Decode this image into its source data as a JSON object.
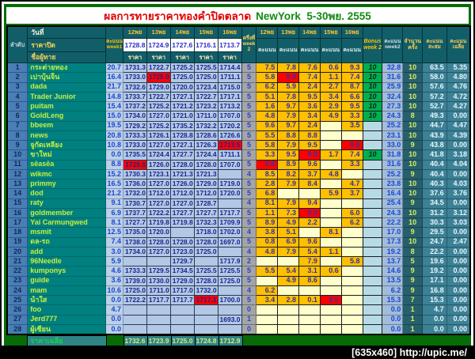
{
  "title": {
    "thai": "ผลการทายราคาทองคำปิดตลาด",
    "en": "NewYork  5-30พย. 2555"
  },
  "watermark": "[635x460] http://upic.me/",
  "colors": {
    "highlight_red": "#ff0000",
    "bonus_green": "#00b050",
    "score_orange": "#ffc000",
    "title_red": "#e00000",
    "title_green": "#128a12",
    "page_green": "#076b07"
  },
  "header": {
    "rank": "ลำดับ",
    "date": "วันที่",
    "close": "ราคาปิด",
    "name": "ชื่อผู้ทาย",
    "week1_score": "คะแนน week1",
    "dates": [
      "12พย",
      "13พย",
      "14พย",
      "15พย",
      "16พย"
    ],
    "close_prices": [
      "1728.8",
      "1724.9",
      "1727.6",
      "1716.1",
      "1713.7"
    ],
    "price_label": "ราคา",
    "half_week2": "ครึ่งที่ week 2",
    "score_label": "คะแนน",
    "bonus": "Bonus week 2",
    "week2_score": "คะแนน week2",
    "count": "จำนวน ครั้ง",
    "cumulative": "คะแนน สะสม",
    "average": "คะแนน เฉลี่ย"
  },
  "rows": [
    {
      "n": "1",
      "name": "กระต่ายทอง",
      "w1": "20.7",
      "p": [
        "1731.3",
        "1722.7",
        "1725.2",
        "1725.5",
        "1714.4"
      ],
      "pr": -1,
      "h": "5",
      "s": [
        "7.5",
        "7.8",
        "7.6",
        "0.6",
        "9.3"
      ],
      "sr": -1,
      "b": "10",
      "w2": "32.8",
      "c": "10",
      "cum": "63.5",
      "avg": "5.35"
    },
    {
      "n": "2",
      "name": "เปาบุ้นจิ้น",
      "w1": "16.4",
      "p": [
        "1733.0",
        "1725.0",
        "1725.0",
        "1725.0",
        "1711.1"
      ],
      "pr": 1,
      "h": "5",
      "s": [
        "5.8",
        "9.9",
        "7.4",
        "1.1",
        "7.4"
      ],
      "sr": 1,
      "b": "10",
      "w2": "31.6",
      "c": "10",
      "cum": "58.0",
      "avg": "4.80"
    },
    {
      "n": "3",
      "name": "dada",
      "w1": "21.7",
      "p": [
        "1732.6",
        "1729.0",
        "1720.0",
        "1723.4",
        "1715.0"
      ],
      "pr": -1,
      "h": "5",
      "s": [
        "6.2",
        "5.9",
        "2.4",
        "2.7",
        "8.7"
      ],
      "sr": -1,
      "b": "10",
      "w2": "25.9",
      "c": "10",
      "cum": "57.6",
      "avg": "4.76"
    },
    {
      "n": "4",
      "name": "Trader Junior",
      "w1": "14.8",
      "p": [
        "1733.7",
        "1722.7",
        "1727.1",
        "1722.7",
        "1717.1"
      ],
      "pr": -1,
      "h": "5",
      "s": [
        "5.1",
        "7.8",
        "9.5",
        "3.4",
        "6.6"
      ],
      "sr": -1,
      "b": "10",
      "w2": "32.4",
      "c": "10",
      "cum": "57.2",
      "avg": "4.72"
    },
    {
      "n": "5",
      "name": "puitam",
      "w1": "15.4",
      "p": [
        "1737.2",
        "1725.2",
        "1721.2",
        "1723.2",
        "1713.2"
      ],
      "pr": -1,
      "h": "5",
      "s": [
        "1.6",
        "9.7",
        "3.6",
        "2.9",
        "9.5"
      ],
      "sr": -1,
      "b": "10",
      "w2": "27.3",
      "c": "10",
      "cum": "52.7",
      "avg": "4.27"
    },
    {
      "n": "6",
      "name": "GoldLeng",
      "w1": "15.0",
      "p": [
        "1734.0",
        "1727.0",
        "1721.0",
        "1711.0",
        "1707.0"
      ],
      "pr": -1,
      "h": "5",
      "s": [
        "4.8",
        "7.9",
        "3.4",
        "4.9",
        "3.3"
      ],
      "sr": -1,
      "b": "10",
      "w2": "24.3",
      "c": "8",
      "cum": "49.3",
      "avg": "0.00"
    },
    {
      "n": "7",
      "name": "bbeem",
      "w1": "19.5",
      "p": [
        "1729.2",
        "1725.2",
        "1735.2",
        "1732.2",
        "1720.2"
      ],
      "pr": -1,
      "h": "5",
      "s": [
        "9.6",
        "9.7",
        "2.4",
        "",
        "3.5"
      ],
      "sr": -1,
      "b": "",
      "w2": "25.2",
      "c": "10",
      "cum": "44.7",
      "avg": "4.47"
    },
    {
      "n": "8",
      "name": "news",
      "w1": "20.8",
      "p": [
        "1733.3",
        "1726.1",
        "1728.8",
        "1728.6",
        "1726.6"
      ],
      "pr": -1,
      "h": "5",
      "s": [
        "5.5",
        "8.8",
        "8.8",
        "",
        ""
      ],
      "sr": -1,
      "b": "",
      "w2": "23.1",
      "c": "10",
      "cum": "43.9",
      "avg": "4.39"
    },
    {
      "n": "9",
      "name": "จูกัดเหลียง",
      "w1": "10.8",
      "p": [
        "1733.0",
        "1727.0",
        "1727.1",
        "1726.3",
        "1713.5"
      ],
      "pr": 4,
      "h": "5",
      "s": [
        "5.8",
        "7.9",
        "9.5",
        "",
        "9.8"
      ],
      "sr": 4,
      "b": "",
      "w2": "33.0",
      "c": "9",
      "cum": "43.8",
      "avg": "0.00"
    },
    {
      "n": "10",
      "name": "ขาใหม่",
      "w1": "0.0",
      "p": [
        "1735.5",
        "1724.4",
        "1727.7",
        "1724.4",
        "1711.1"
      ],
      "pr": -1,
      "h": "5",
      "s": [
        "3.3",
        "9.5",
        "9.9",
        "1.7",
        "7.4"
      ],
      "sr": 2,
      "b": "10",
      "w2": "31.8",
      "c": "10",
      "cum": "41.8",
      "avg": "3.18"
    },
    {
      "n": "11",
      "name": "sēasēa",
      "w1": "8.8",
      "p": [
        "1729.0",
        "1726.0",
        "1728.0",
        "1728.0",
        "1707.0"
      ],
      "pr": 0,
      "h": "5",
      "s": [
        "9.8",
        "8.9",
        "9.6",
        "",
        "3.3"
      ],
      "sr": 0,
      "b": "",
      "w2": "31.6",
      "c": "10",
      "cum": "40.4",
      "avg": "4.04"
    },
    {
      "n": "12",
      "name": "wikmc",
      "w1": "15.2",
      "p": [
        "1730.3",
        "1723.1",
        "1721.3",
        "1721.3",
        ""
      ],
      "pr": -1,
      "h": "4",
      "s": [
        "8.5",
        "8.2",
        "3.7",
        "4.8",
        ""
      ],
      "sr": -1,
      "b": "",
      "w2": "25.2",
      "c": "9",
      "cum": "40.4",
      "avg": "0.00"
    },
    {
      "n": "13",
      "name": "primmy",
      "w1": "16.5",
      "p": [
        "1736.0",
        "1727.0",
        "1726.0",
        "1729.0",
        "1719.0"
      ],
      "pr": -1,
      "h": "5",
      "s": [
        "2.8",
        "7.9",
        "8.4",
        "",
        "4.7"
      ],
      "sr": -1,
      "b": "",
      "w2": "23.8",
      "c": "10",
      "cum": "40.3",
      "avg": "4.03"
    },
    {
      "n": "14",
      "name": "dod",
      "w1": "21.2",
      "p": [
        "1732.0",
        "1712.0",
        "1712.0",
        "1712.0",
        "1720.0"
      ],
      "pr": -1,
      "h": "5",
      "s": [
        "6.8",
        "",
        "",
        "5.9",
        "3.7"
      ],
      "sr": -1,
      "b": "",
      "w2": "16.4",
      "c": "10",
      "cum": "37.6",
      "avg": "3.76"
    },
    {
      "n": "15",
      "name": "raty",
      "w1": "9.1",
      "p": [
        "1730.7",
        "1727.0",
        "1727.0",
        "1728.7",
        ""
      ],
      "pr": -1,
      "h": "4",
      "s": [
        "8.1",
        "7.9",
        "9.4",
        "",
        ""
      ],
      "sr": -1,
      "b": "",
      "w2": "25.4",
      "c": "9",
      "cum": "34.5",
      "avg": "0.00"
    },
    {
      "n": "16",
      "name": "goldmember",
      "w1": "6.9",
      "p": [
        "1737.7",
        "1722.2",
        "1727.7",
        "1727.7",
        "1717.7"
      ],
      "pr": -1,
      "h": "5",
      "s": [
        "1.1",
        "7.3",
        "9.9",
        "",
        "6.0"
      ],
      "sr": 2,
      "b": "",
      "w2": "24.3",
      "c": "10",
      "cum": "31.2",
      "avg": "3.12"
    },
    {
      "n": "17",
      "name": "Yai Carmungwed",
      "w1": "8.1",
      "p": [
        "1727.7",
        "1719.8",
        "1719.8",
        "1732.3",
        "1709.9"
      ],
      "pr": -1,
      "h": "5",
      "s": [
        "8.9",
        "4.9",
        "2.2",
        "",
        "6.2"
      ],
      "sr": -1,
      "b": "",
      "w2": "22.2",
      "c": "10",
      "cum": "30.3",
      "avg": "3.03"
    },
    {
      "n": "18",
      "name": "msmit",
      "w1": "12.5",
      "p": [
        "1735.0",
        "1720.0",
        "",
        "1718.0",
        "1702.0"
      ],
      "pr": -1,
      "h": "4",
      "s": [
        "3.8",
        "5.1",
        "",
        "8.1",
        ""
      ],
      "sr": -1,
      "b": "",
      "w2": "17.0",
      "c": "9",
      "cum": "29.5",
      "avg": "0.00"
    },
    {
      "n": "19",
      "name": "ดล-รถ",
      "w1": "7.4",
      "p": [
        "1738.0",
        "1728.0",
        "1728.0",
        "1728.0",
        "1697.0"
      ],
      "pr": -1,
      "h": "5",
      "s": [
        "0.8",
        "6.9",
        "9.6",
        "",
        ""
      ],
      "sr": -1,
      "b": "",
      "w2": "17.3",
      "c": "10",
      "cum": "24.7",
      "avg": "2.47"
    },
    {
      "n": "20",
      "name": "add",
      "w1": "3.0",
      "p": [
        "1734.0",
        "1727.0",
        "1723.0",
        "1725.0",
        ""
      ],
      "pr": -1,
      "h": "4",
      "s": [
        "4.8",
        "7.9",
        "5.4",
        "1.1",
        ""
      ],
      "sr": -1,
      "b": "",
      "w2": "19.2",
      "c": "8",
      "cum": "22.2",
      "avg": "0.00"
    },
    {
      "n": "21",
      "name": "96Needle",
      "w1": "5.9",
      "p": [
        "",
        "",
        "1729.7",
        "",
        "1717.9"
      ],
      "pr": -1,
      "h": "2",
      "s": [
        "",
        "",
        "7.9",
        "",
        "5.8"
      ],
      "sr": -1,
      "b": "",
      "w2": "13.7",
      "c": "5",
      "cum": "19.6",
      "avg": "0.00"
    },
    {
      "n": "22",
      "name": "kumponys",
      "w1": "4.6",
      "p": [
        "1733.3",
        "1729.5",
        "1734.5",
        "1725.5",
        "1725.5"
      ],
      "pr": -1,
      "h": "5",
      "s": [
        "5.5",
        "5.4",
        "3.1",
        "0.6",
        ""
      ],
      "sr": -1,
      "b": "",
      "w2": "14.6",
      "c": "9",
      "cum": "19.2",
      "avg": "0.00"
    },
    {
      "n": "23",
      "name": "guide",
      "w1": "3.6",
      "p": [
        "1739.0",
        "1730.0",
        "1729.0",
        "1728.0",
        "1725.0"
      ],
      "pr": -1,
      "h": "5",
      "s": [
        "",
        "4.9",
        "8.6",
        "",
        ""
      ],
      "sr": -1,
      "b": "",
      "w2": "13.5",
      "c": "9",
      "cum": "17.1",
      "avg": "0.00"
    },
    {
      "n": "24",
      "name": "mam",
      "w1": "10.6",
      "p": [
        "1725.0",
        "1711.0",
        "1717.0",
        "1732.0",
        ""
      ],
      "pr": -1,
      "h": "4",
      "s": [
        "6.2",
        "",
        "",
        "",
        ""
      ],
      "sr": -1,
      "b": "",
      "w2": "6.2",
      "c": "9",
      "cum": "16.8",
      "avg": "0.00"
    },
    {
      "n": "25",
      "name": "น้ำใส",
      "w1": "0.0",
      "p": [
        "1722.2",
        "1717.7",
        "1717.7",
        "1717.1",
        "1700.0"
      ],
      "pr": 3,
      "h": "5",
      "s": [
        "3.4",
        "2.8",
        "0.1",
        "9.0",
        ""
      ],
      "sr": 3,
      "b": "",
      "w2": "15.3",
      "c": "7",
      "cum": "15.3",
      "avg": "0.00"
    },
    {
      "n": "26",
      "name": "foo",
      "w1": "4.7",
      "p": [
        "",
        "",
        "",
        "",
        ""
      ],
      "pr": -1,
      "h": "0",
      "s": [
        "",
        "",
        "",
        "",
        ""
      ],
      "sr": -1,
      "b": "",
      "w2": "0.0",
      "c": "1",
      "cum": "4.7",
      "avg": "0.00"
    },
    {
      "n": "27",
      "name": "Jerd777",
      "w1": "0.0",
      "p": [
        "",
        "",
        "",
        "",
        "1693.0"
      ],
      "pr": -1,
      "h": "1",
      "s": [
        "",
        "",
        "",
        "",
        ""
      ],
      "sr": -1,
      "b": "",
      "w2": "0.0",
      "c": "1",
      "cum": "0.0",
      "avg": "0.00"
    },
    {
      "n": "28",
      "name": "ผู้เซียน",
      "w1": "0.0",
      "p": [
        "",
        "",
        "",
        "",
        ""
      ],
      "pr": -1,
      "h": "0",
      "s": [
        "",
        "",
        "",
        "",
        ""
      ],
      "sr": -1,
      "b": "",
      "w2": "0.0",
      "c": "1",
      "cum": "0.0",
      "avg": "0.00"
    }
  ],
  "footer": {
    "label": "ราคาเฉลี่ย",
    "values": [
      "1732.6",
      "1723.9",
      "1725.0",
      "1724.8",
      "1712.9"
    ]
  }
}
